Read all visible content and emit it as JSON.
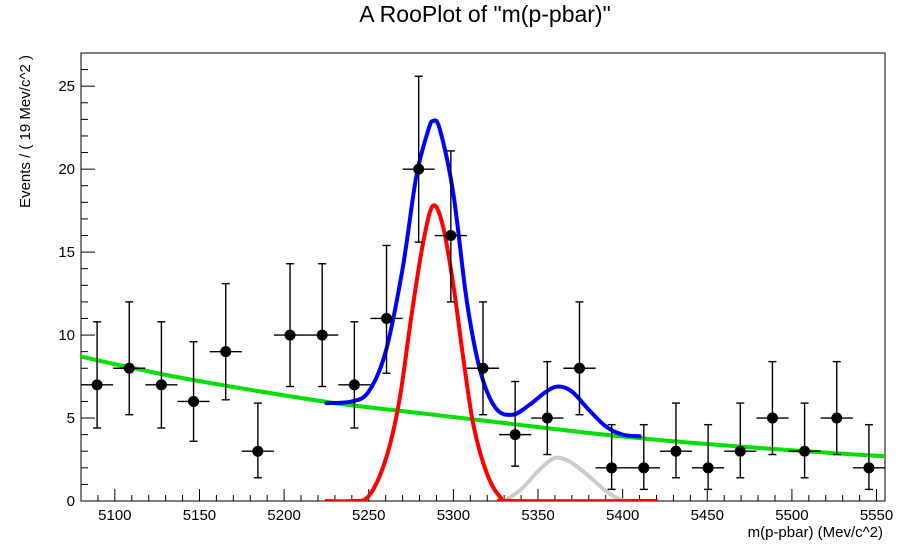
{
  "chart_data": {
    "type": "scatter",
    "title": "A RooPlot of \"m(p-pbar)\"",
    "xlabel": "m(p-pbar) (Mev/c^2)",
    "ylabel": "Events / ( 19 Mev/c^2 )",
    "xlim": [
      5080,
      5555
    ],
    "ylim": [
      0,
      27
    ],
    "x_ticks": [
      5100,
      5150,
      5200,
      5250,
      5300,
      5350,
      5400,
      5450,
      5500,
      5550
    ],
    "y_ticks": [
      0,
      5,
      10,
      15,
      20,
      25
    ],
    "grid": false,
    "bin_half_width": 9.5,
    "series": [
      {
        "type": "points_with_errors",
        "color": "#000000",
        "points": [
          {
            "x": 5089.5,
            "y": 7,
            "err_lo": 2.6,
            "err_hi": 3.8
          },
          {
            "x": 5108.5,
            "y": 8,
            "err_lo": 2.8,
            "err_hi": 4.0
          },
          {
            "x": 5127.5,
            "y": 7,
            "err_lo": 2.6,
            "err_hi": 3.8
          },
          {
            "x": 5146.5,
            "y": 6,
            "err_lo": 2.4,
            "err_hi": 3.6
          },
          {
            "x": 5165.5,
            "y": 9,
            "err_lo": 2.9,
            "err_hi": 4.1
          },
          {
            "x": 5184.5,
            "y": 3,
            "err_lo": 1.6,
            "err_hi": 2.9
          },
          {
            "x": 5203.5,
            "y": 10,
            "err_lo": 3.1,
            "err_hi": 4.3
          },
          {
            "x": 5222.5,
            "y": 10,
            "err_lo": 3.1,
            "err_hi": 4.3
          },
          {
            "x": 5241.5,
            "y": 7,
            "err_lo": 2.6,
            "err_hi": 3.8
          },
          {
            "x": 5260.5,
            "y": 11,
            "err_lo": 3.3,
            "err_hi": 4.4
          },
          {
            "x": 5279.5,
            "y": 20,
            "err_lo": 4.4,
            "err_hi": 5.6
          },
          {
            "x": 5298.5,
            "y": 16,
            "err_lo": 4.0,
            "err_hi": 5.1
          },
          {
            "x": 5317.5,
            "y": 8,
            "err_lo": 2.8,
            "err_hi": 4.0
          },
          {
            "x": 5336.5,
            "y": 4,
            "err_lo": 1.9,
            "err_hi": 3.2
          },
          {
            "x": 5355.5,
            "y": 5,
            "err_lo": 2.2,
            "err_hi": 3.4
          },
          {
            "x": 5374.5,
            "y": 8,
            "err_lo": 2.8,
            "err_hi": 4.0
          },
          {
            "x": 5393.5,
            "y": 2,
            "err_lo": 1.3,
            "err_hi": 2.6
          },
          {
            "x": 5412.5,
            "y": 2,
            "err_lo": 1.3,
            "err_hi": 2.6
          },
          {
            "x": 5431.5,
            "y": 3,
            "err_lo": 1.6,
            "err_hi": 2.9
          },
          {
            "x": 5450.5,
            "y": 2,
            "err_lo": 1.3,
            "err_hi": 2.6
          },
          {
            "x": 5469.5,
            "y": 3,
            "err_lo": 1.6,
            "err_hi": 2.9
          },
          {
            "x": 5488.5,
            "y": 5,
            "err_lo": 2.2,
            "err_hi": 3.4
          },
          {
            "x": 5507.5,
            "y": 3,
            "err_lo": 1.6,
            "err_hi": 2.9
          },
          {
            "x": 5526.5,
            "y": 5,
            "err_lo": 2.2,
            "err_hi": 3.4
          },
          {
            "x": 5545.5,
            "y": 2,
            "err_lo": 1.3,
            "err_hi": 2.6
          }
        ]
      },
      {
        "type": "curve",
        "color": "#00e000",
        "points": [
          [
            5080,
            8.7
          ],
          [
            5130,
            7.6
          ],
          [
            5180,
            6.7
          ],
          [
            5230,
            5.9
          ],
          [
            5280,
            5.3
          ],
          [
            5330,
            4.7
          ],
          [
            5380,
            4.1
          ],
          [
            5430,
            3.6
          ],
          [
            5480,
            3.2
          ],
          [
            5530,
            2.85
          ],
          [
            5555,
            2.7
          ]
        ]
      },
      {
        "type": "curve",
        "color": "#0000ff",
        "points": [
          [
            5225,
            5.9
          ],
          [
            5240,
            6.0
          ],
          [
            5250,
            6.6
          ],
          [
            5260,
            9.0
          ],
          [
            5270,
            14.0
          ],
          [
            5278,
            19.5
          ],
          [
            5285,
            22.3
          ],
          [
            5288,
            22.9
          ],
          [
            5292,
            22.4
          ],
          [
            5300,
            18.5
          ],
          [
            5308,
            12.0
          ],
          [
            5316,
            7.8
          ],
          [
            5325,
            5.6
          ],
          [
            5335,
            5.2
          ],
          [
            5345,
            5.8
          ],
          [
            5355,
            6.6
          ],
          [
            5362,
            6.9
          ],
          [
            5370,
            6.6
          ],
          [
            5380,
            5.5
          ],
          [
            5390,
            4.5
          ],
          [
            5400,
            4.0
          ],
          [
            5410,
            3.9
          ]
        ]
      },
      {
        "type": "curve",
        "color": "#ff0000",
        "points": [
          [
            5225,
            0.0
          ],
          [
            5240,
            0.0
          ],
          [
            5250,
            0.3
          ],
          [
            5260,
            2.5
          ],
          [
            5268,
            6.0
          ],
          [
            5275,
            11.0
          ],
          [
            5282,
            15.5
          ],
          [
            5288,
            17.8
          ],
          [
            5294,
            16.5
          ],
          [
            5300,
            13.0
          ],
          [
            5306,
            8.5
          ],
          [
            5312,
            4.5
          ],
          [
            5320,
            1.6
          ],
          [
            5328,
            0.2
          ],
          [
            5335,
            0.0
          ],
          [
            5420,
            0.0
          ]
        ]
      },
      {
        "type": "curve",
        "color": "#cccccc",
        "points": [
          [
            5330,
            0.0
          ],
          [
            5340,
            0.7
          ],
          [
            5350,
            1.8
          ],
          [
            5358,
            2.5
          ],
          [
            5363,
            2.6
          ],
          [
            5370,
            2.3
          ],
          [
            5380,
            1.5
          ],
          [
            5390,
            0.6
          ],
          [
            5400,
            0.05
          ],
          [
            5410,
            0.0
          ]
        ]
      }
    ]
  }
}
